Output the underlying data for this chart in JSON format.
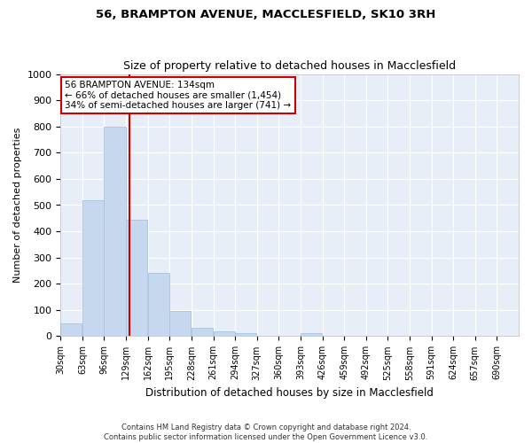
{
  "title1": "56, BRAMPTON AVENUE, MACCLESFIELD, SK10 3RH",
  "title2": "Size of property relative to detached houses in Macclesfield",
  "xlabel": "Distribution of detached houses by size in Macclesfield",
  "ylabel": "Number of detached properties",
  "categories": [
    "30sqm",
    "63sqm",
    "96sqm",
    "129sqm",
    "162sqm",
    "195sqm",
    "228sqm",
    "261sqm",
    "294sqm",
    "327sqm",
    "360sqm",
    "393sqm",
    "426sqm",
    "459sqm",
    "492sqm",
    "525sqm",
    "558sqm",
    "591sqm",
    "624sqm",
    "657sqm",
    "690sqm"
  ],
  "bin_edges": [
    30,
    63,
    96,
    129,
    162,
    195,
    228,
    261,
    294,
    327,
    360,
    393,
    426,
    459,
    492,
    525,
    558,
    591,
    624,
    657,
    690
  ],
  "bin_width": 33,
  "values": [
    50,
    520,
    800,
    445,
    240,
    97,
    32,
    17,
    10,
    0,
    0,
    10,
    0,
    0,
    0,
    0,
    0,
    0,
    0,
    0,
    0
  ],
  "bar_color": "#c5d8ed",
  "bar_edgecolor": "#a8c4de",
  "property_line_x": 134,
  "property_line_color": "#cc0000",
  "annotation_line1": "56 BRAMPTON AVENUE: 134sqm",
  "annotation_line2": "← 66% of detached houses are smaller (1,454)",
  "annotation_line3": "34% of semi-detached houses are larger (741) →",
  "annotation_box_color": "#ffffff",
  "annotation_box_edgecolor": "#cc0000",
  "ylim": [
    0,
    1000
  ],
  "yticks": [
    0,
    100,
    200,
    300,
    400,
    500,
    600,
    700,
    800,
    900,
    1000
  ],
  "background_color": "#e8eef7",
  "grid_color": "#ffffff",
  "footnote1": "Contains HM Land Registry data © Crown copyright and database right 2024.",
  "footnote2": "Contains public sector information licensed under the Open Government Licence v3.0.",
  "fig_width": 6.0,
  "fig_height": 5.0,
  "dpi": 100
}
